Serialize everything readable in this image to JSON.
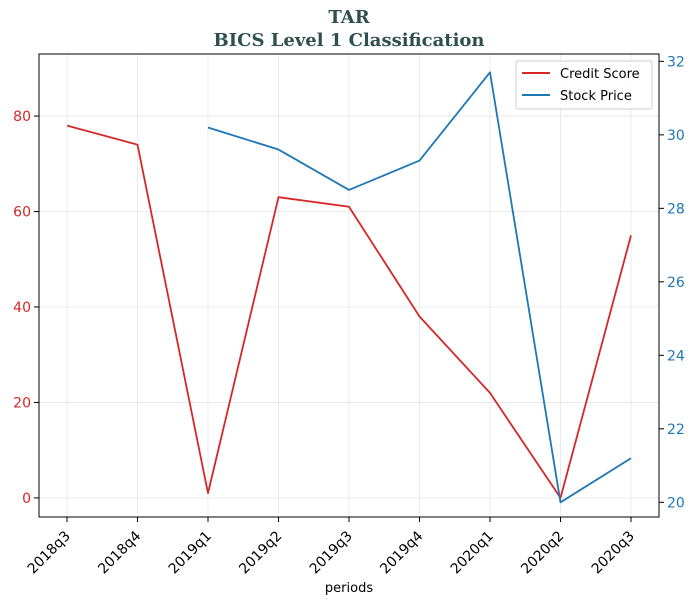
{
  "colors": {
    "title": "#2f4f4f",
    "credit": "#d62728",
    "stock": "#1f77b4",
    "grid": "#e6e6e6",
    "axis": "#000000"
  },
  "chart_data": {
    "type": "line",
    "title": "TAR",
    "subtitle": "BICS Level 1 Classification",
    "xlabel": "periods",
    "categories": [
      "2018q3",
      "2018q4",
      "2019q1",
      "2019q2",
      "2019q3",
      "2019q4",
      "2020q1",
      "2020q2",
      "2020q3"
    ],
    "left_axis": {
      "ylim": [
        -4,
        93
      ],
      "ticks": [
        0,
        20,
        40,
        60,
        80
      ],
      "color": "#d62728"
    },
    "right_axis": {
      "ylim": [
        19.6,
        32.2
      ],
      "ticks": [
        20,
        22,
        24,
        26,
        28,
        30,
        32
      ],
      "color": "#1f77b4"
    },
    "series": [
      {
        "name": "Credit Score",
        "axis": "left",
        "color": "#d62728",
        "values": [
          78,
          74,
          1,
          63,
          61,
          38,
          22,
          0,
          55
        ]
      },
      {
        "name": "Stock Price",
        "axis": "right",
        "color": "#1f77b4",
        "values": [
          null,
          null,
          30.2,
          29.6,
          28.5,
          29.3,
          31.7,
          20.0,
          21.2
        ]
      }
    ],
    "grid": true,
    "legend_position": "top-right"
  }
}
